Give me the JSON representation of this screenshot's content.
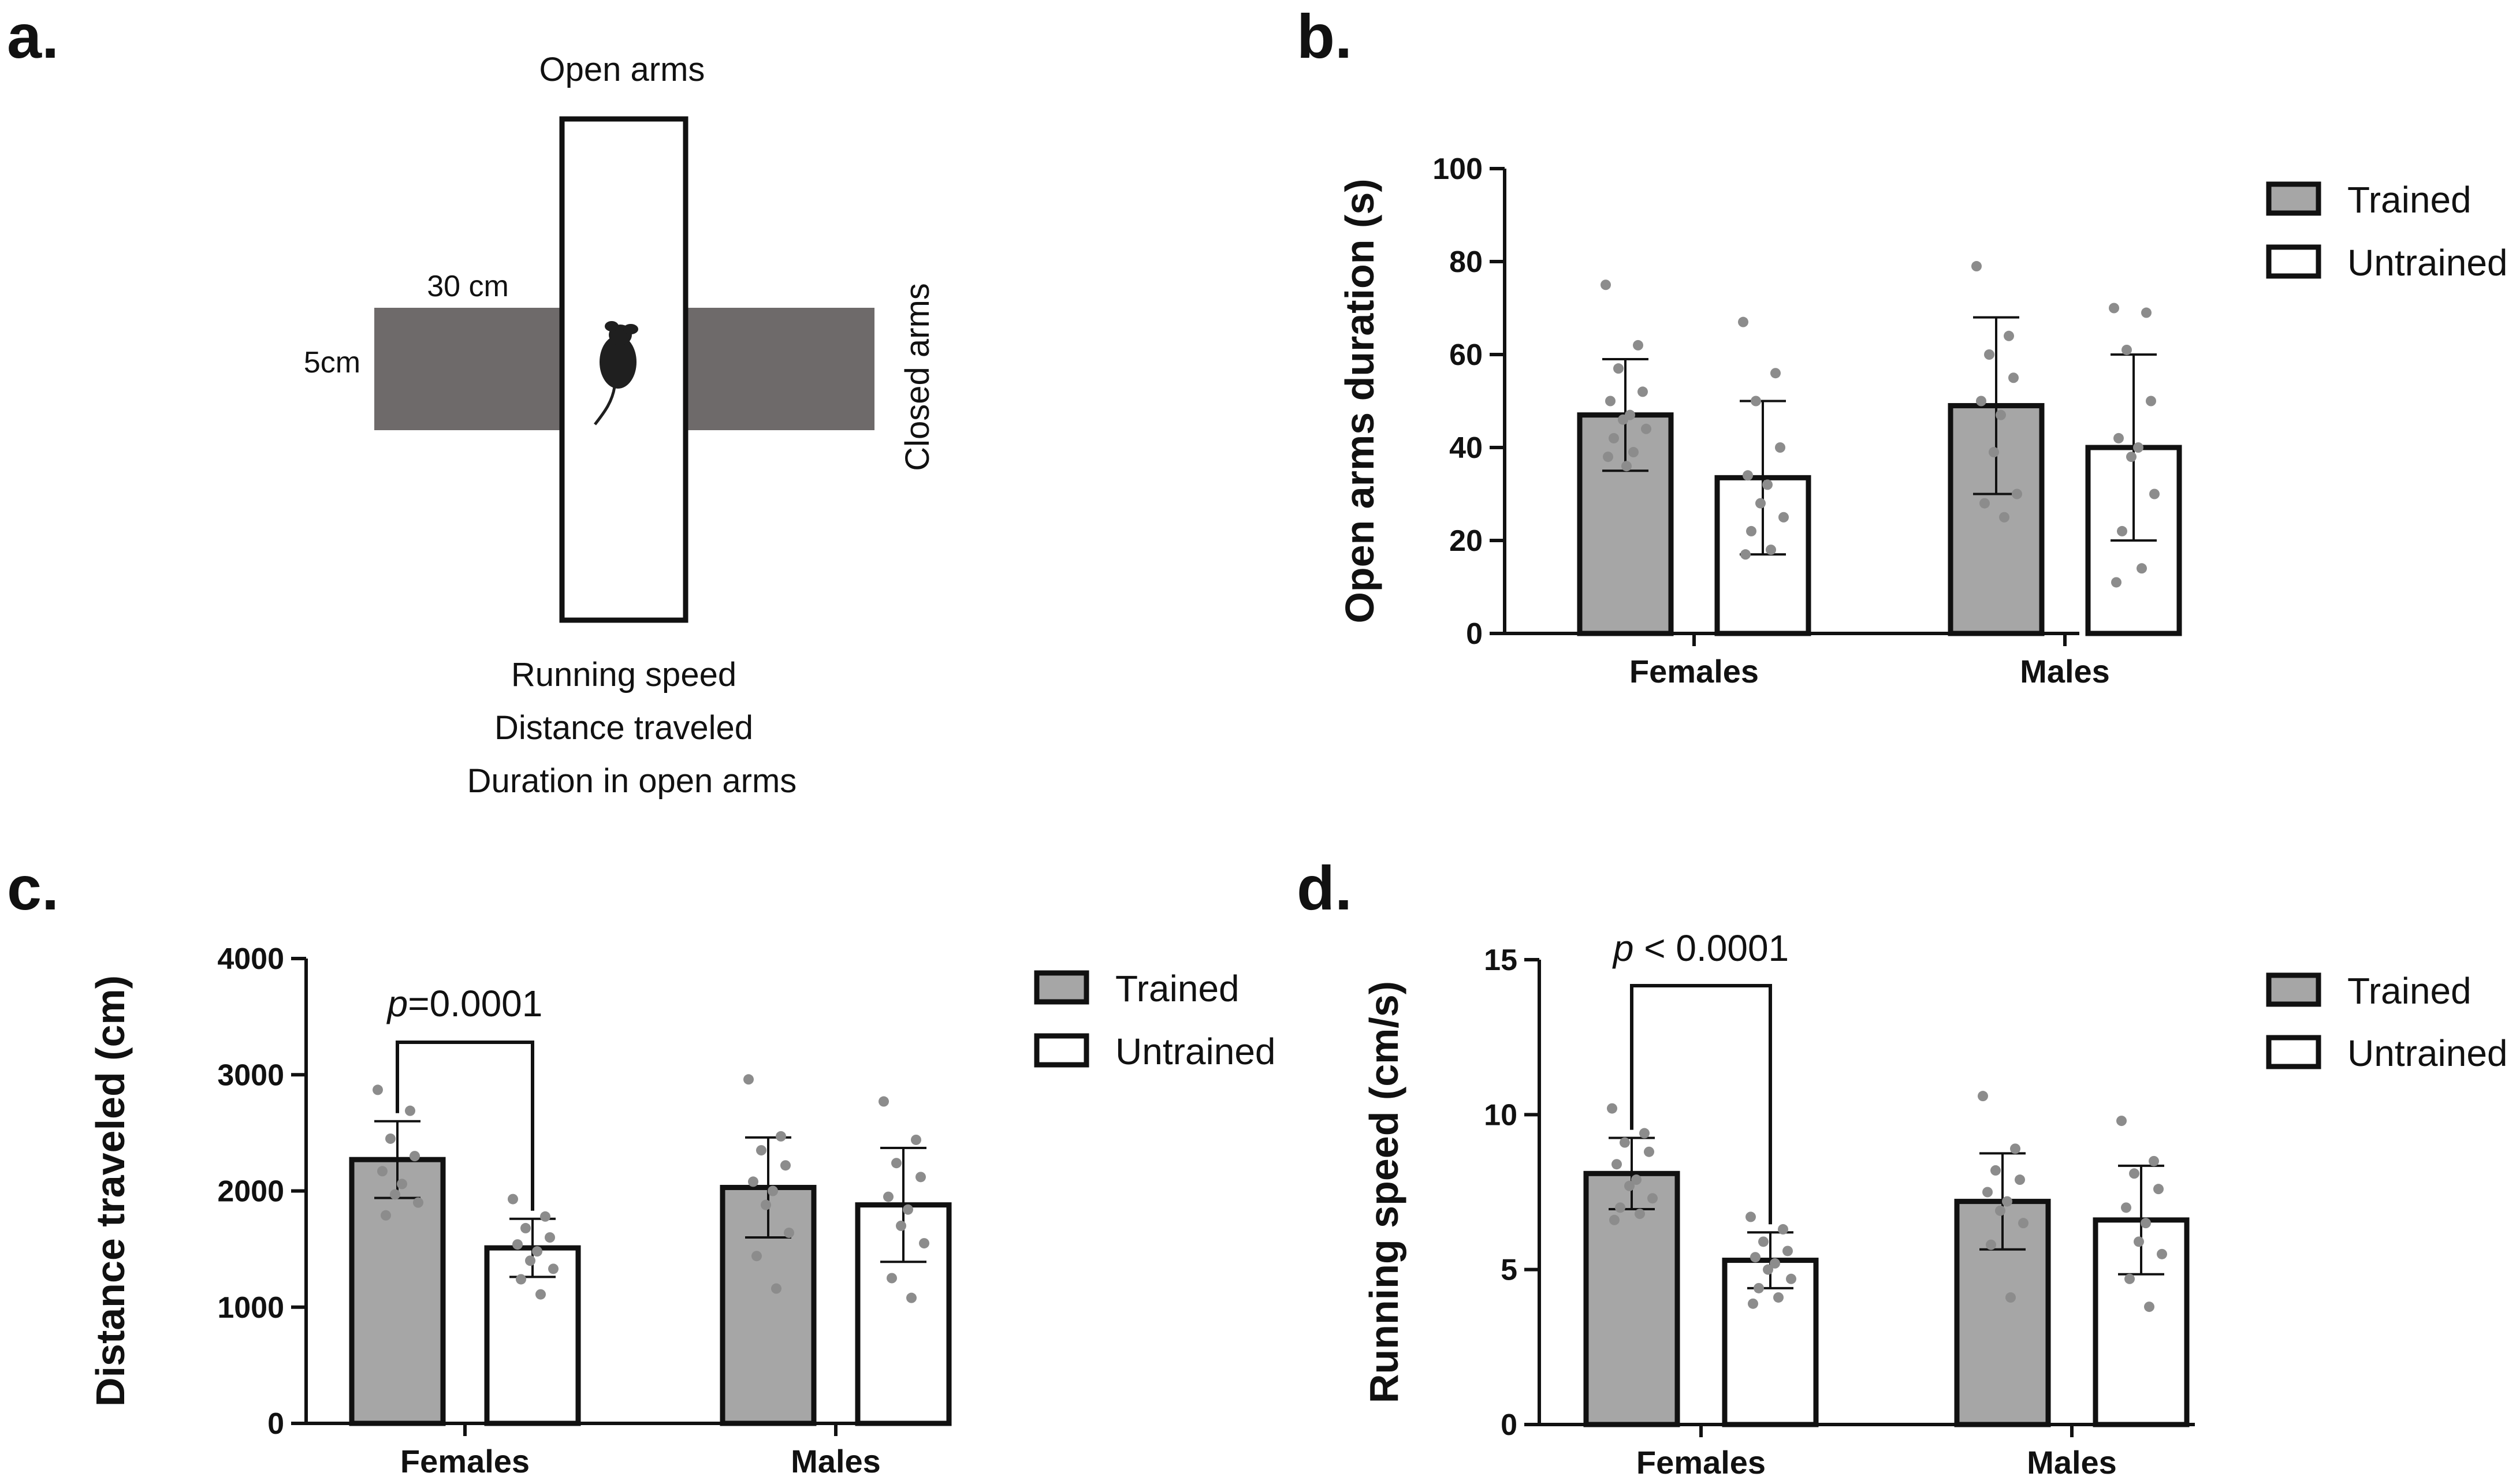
{
  "panels": {
    "a": "a.",
    "b": "b.",
    "c": "c.",
    "d": "d."
  },
  "diagram": {
    "open_arms": "Open arms",
    "closed_arms": "Closed arms",
    "length_label": "30 cm",
    "width_label": "5cm",
    "measures": [
      "Running speed",
      "Distance traveled",
      "Duration in open arms"
    ]
  },
  "colors": {
    "trained": "#a6a6a6",
    "untrained": "#ffffff",
    "dots": "#8c8c8c",
    "arena_closed": "#6e6a6a"
  },
  "chart_data": [
    {
      "panel": "b",
      "type": "bar",
      "categories": [
        "Females",
        "Males"
      ],
      "series": [
        {
          "name": "Trained",
          "values": [
            47,
            49
          ],
          "sd": [
            12,
            19
          ],
          "points": [
            [
              75,
              62,
              57,
              52,
              50,
              47,
              46,
              44,
              42,
              39,
              38,
              36
            ],
            [
              79,
              64,
              60,
              55,
              50,
              47,
              39,
              30,
              28,
              25
            ]
          ]
        },
        {
          "name": "Untrained",
          "values": [
            33.5,
            40
          ],
          "sd": [
            16.5,
            20
          ],
          "points": [
            [
              67,
              56,
              50,
              40,
              34,
              32,
              28,
              25,
              22,
              18,
              17
            ],
            [
              70,
              69,
              61,
              50,
              42,
              40,
              38,
              30,
              22,
              14,
              11
            ]
          ]
        }
      ],
      "ylabel": "Open arms duration (s)",
      "ylim": [
        0,
        100
      ],
      "yticks": [
        "0",
        "20",
        "40",
        "60",
        "80",
        "100"
      ],
      "legend": "top-right"
    },
    {
      "panel": "c",
      "type": "bar",
      "categories": [
        "Females",
        "Males"
      ],
      "series": [
        {
          "name": "Trained",
          "values": [
            2270,
            2030
          ],
          "sd": [
            330,
            430
          ],
          "points": [
            [
              2870,
              2690,
              2450,
              2300,
              2170,
              2060,
              1970,
              1900,
              1790
            ],
            [
              2960,
              2470,
              2350,
              2220,
              2080,
              2000,
              1880,
              1640,
              1440,
              1160
            ]
          ]
        },
        {
          "name": "Untrained",
          "values": [
            1510,
            1880
          ],
          "sd": [
            250,
            490
          ],
          "points": [
            [
              1930,
              1780,
              1680,
              1600,
              1540,
              1480,
              1400,
              1330,
              1240,
              1110
            ],
            [
              2770,
              2440,
              2240,
              2120,
              1950,
              1840,
              1700,
              1550,
              1250,
              1080
            ]
          ]
        }
      ],
      "ylabel": "Distance traveled (cm)",
      "ylim": [
        0,
        4000
      ],
      "yticks": [
        "0",
        "1000",
        "2000",
        "3000",
        "4000"
      ],
      "legend": "top-right",
      "annotation": {
        "p": "p",
        "text": "=0.0001"
      }
    },
    {
      "panel": "d",
      "type": "bar",
      "categories": [
        "Females",
        "Males"
      ],
      "series": [
        {
          "name": "Trained",
          "values": [
            8.1,
            7.2
          ],
          "sd": [
            1.15,
            1.55
          ],
          "points": [
            [
              10.2,
              9.4,
              9.1,
              8.8,
              8.4,
              7.9,
              7.7,
              7.3,
              7.0,
              6.8,
              6.6
            ],
            [
              10.6,
              8.9,
              8.2,
              7.9,
              7.5,
              7.2,
              6.9,
              6.5,
              5.8,
              4.1
            ]
          ]
        },
        {
          "name": "Untrained",
          "values": [
            5.3,
            6.6
          ],
          "sd": [
            0.9,
            1.75
          ],
          "points": [
            [
              6.7,
              6.3,
              5.9,
              5.6,
              5.4,
              5.2,
              5.0,
              4.7,
              4.4,
              4.1,
              3.9
            ],
            [
              9.8,
              8.5,
              8.1,
              7.6,
              7.0,
              6.5,
              5.9,
              5.5,
              4.7,
              3.8
            ]
          ]
        }
      ],
      "ylabel": "Running speed (cm/s)",
      "ylim": [
        0,
        15
      ],
      "yticks": [
        "0",
        "5",
        "10",
        "15"
      ],
      "legend": "top-right",
      "annotation": {
        "p": "p",
        "text": " < 0.0001"
      }
    }
  ]
}
